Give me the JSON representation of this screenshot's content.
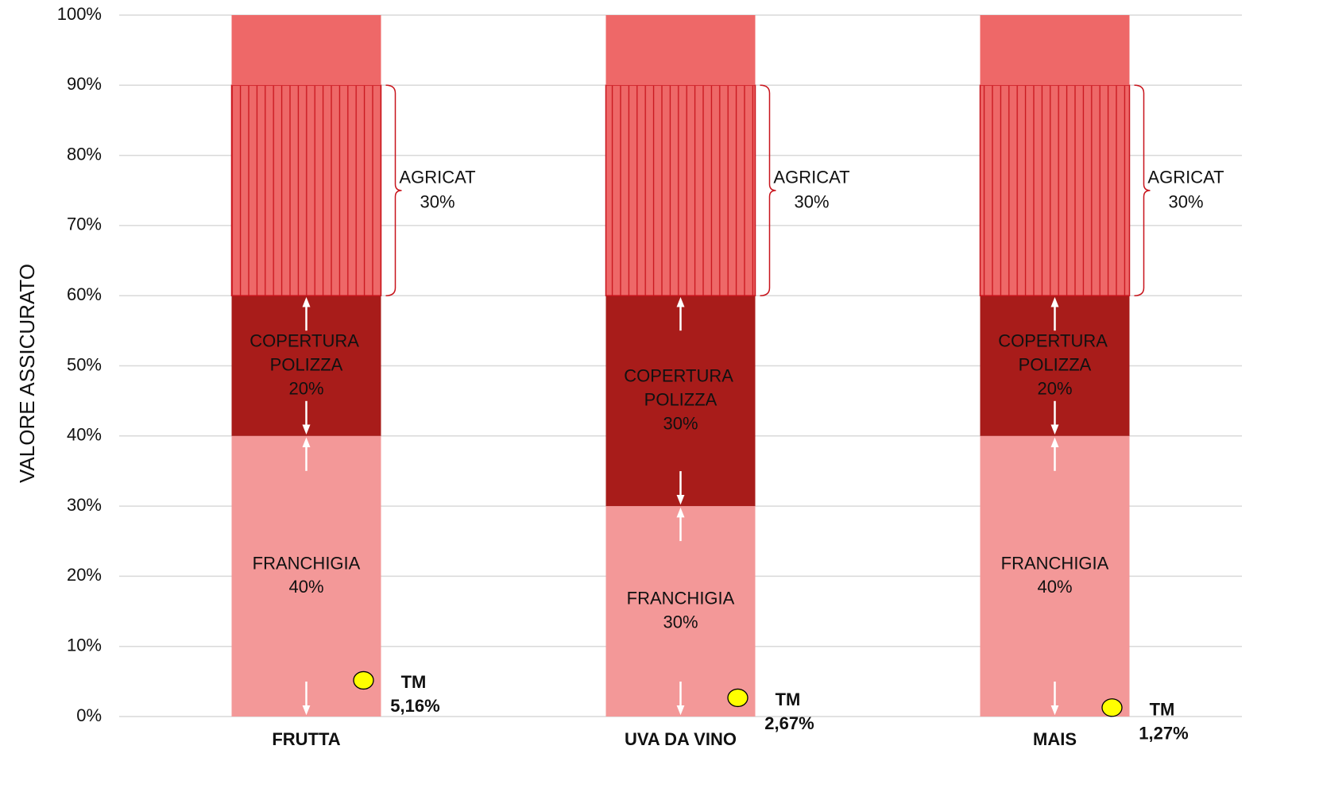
{
  "chart_data": {
    "type": "bar",
    "stacked": true,
    "y_label": "VALORE ASSICURATO",
    "categories": [
      "FRUTTA",
      "UVA DA VINO",
      "MAIS"
    ],
    "ylim": [
      0,
      100
    ],
    "yticks": [
      {
        "value": 0,
        "label": "0%"
      },
      {
        "value": 10,
        "label": "10%"
      },
      {
        "value": 20,
        "label": "20%"
      },
      {
        "value": 30,
        "label": "30%"
      },
      {
        "value": 40,
        "label": "40%"
      },
      {
        "value": 50,
        "label": "50%"
      },
      {
        "value": 60,
        "label": "60%"
      },
      {
        "value": 70,
        "label": "70%"
      },
      {
        "value": 80,
        "label": "80%"
      },
      {
        "value": 90,
        "label": "90%"
      },
      {
        "value": 100,
        "label": "100%"
      }
    ],
    "grid": true,
    "series": [
      {
        "name": "FRANCHIGIA",
        "color": "#f39898",
        "label_color": "#ffffff",
        "values": [
          40,
          30,
          40
        ],
        "value_labels": [
          "40%",
          "30%",
          "40%"
        ]
      },
      {
        "name": "COPERTURA POLIZZA",
        "color": "#a81c1a",
        "label_color": "#ffffff",
        "values": [
          20,
          30,
          20
        ],
        "value_labels": [
          "20%",
          "30%",
          "20%"
        ]
      },
      {
        "name": "AGRICAT",
        "color": "#ee6868",
        "hatch": "#c8141c",
        "label_color": "#e8141c",
        "values": [
          30,
          30,
          30
        ],
        "value_labels": [
          "30%",
          "30%",
          "30%"
        ]
      },
      {
        "color": "#ee6868",
        "values": [
          10,
          10,
          10
        ]
      },
      {
        "name": "TM",
        "type": "scatter",
        "color": "#ffff00",
        "label_color": "#e06010",
        "values": [
          5.16,
          2.67,
          1.27
        ],
        "value_labels": [
          "5,16%",
          "2,67%",
          "1,27%"
        ]
      }
    ]
  }
}
